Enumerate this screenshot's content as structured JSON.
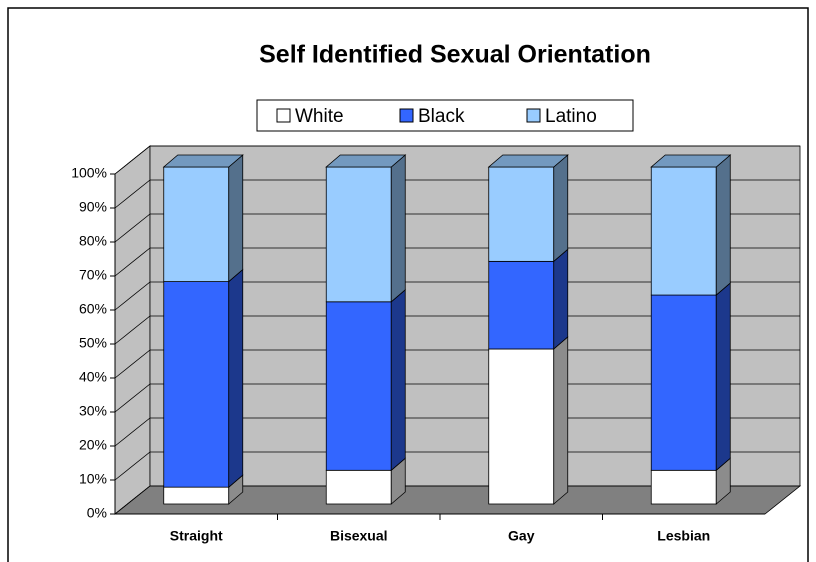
{
  "chart_data": {
    "type": "bar3d_stacked",
    "title": "Self Identified Sexual Orientation",
    "categories": [
      "Straight",
      "Bisexual",
      "Gay",
      "Lesbian"
    ],
    "series": [
      {
        "name": "White",
        "color": "#ffffff",
        "values": [
          5,
          10,
          46,
          10
        ]
      },
      {
        "name": "Black",
        "color": "#3366ff",
        "values": [
          61,
          50,
          26,
          52
        ]
      },
      {
        "name": "Latino",
        "color": "#99ccff",
        "values": [
          34,
          40,
          28,
          38
        ]
      }
    ],
    "ylim": [
      0,
      100
    ],
    "yticks": [
      {
        "value": 0,
        "label": "0%"
      },
      {
        "value": 10,
        "label": "10%"
      },
      {
        "value": 20,
        "label": "20%"
      },
      {
        "value": 30,
        "label": "30%"
      },
      {
        "value": 40,
        "label": "40%"
      },
      {
        "value": 50,
        "label": "50%"
      },
      {
        "value": 60,
        "label": "60%"
      },
      {
        "value": 70,
        "label": "70%"
      },
      {
        "value": 80,
        "label": "80%"
      },
      {
        "value": 90,
        "label": "90%"
      },
      {
        "value": 100,
        "label": "100%"
      }
    ],
    "grid": true,
    "legend": "top"
  }
}
